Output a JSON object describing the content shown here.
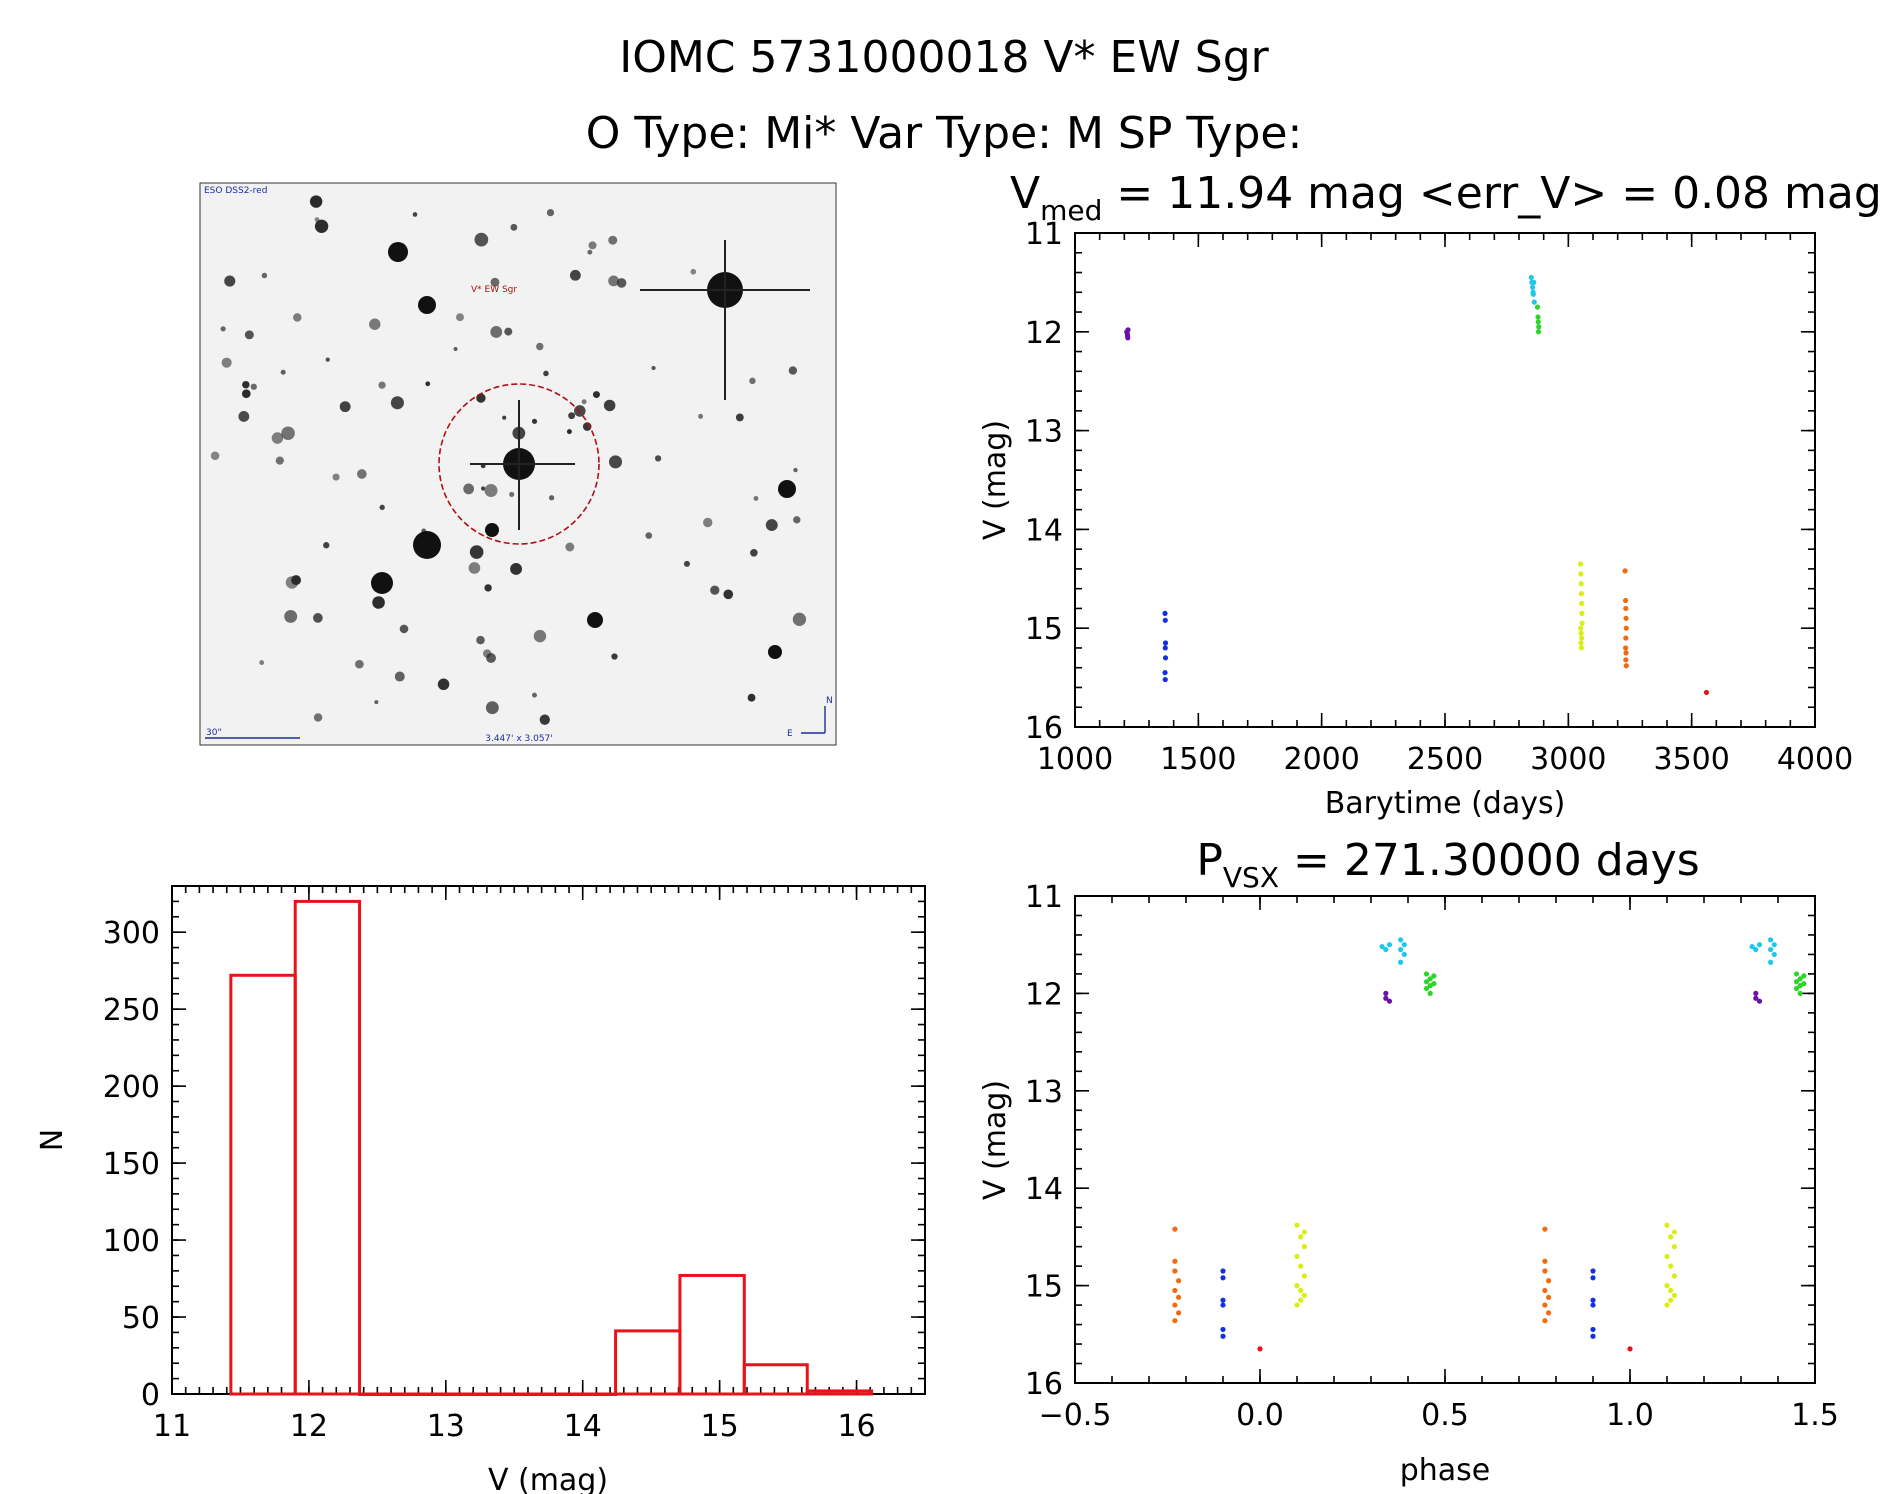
{
  "header": {
    "title_line1": "IOMC 5731000018    V* EW Sgr",
    "title_line2": "O Type: Mi*  Var Type: M  SP Type:"
  },
  "image_panel": {
    "survey_label": "ESO DSS2-red",
    "star_label": "V* EW Sgr",
    "scale_label": "30\"",
    "size_label": "3.447' x 3.057'",
    "compass_n": "N",
    "compass_e": "E"
  },
  "chart_data": [
    {
      "id": "lightcurve",
      "type": "scatter",
      "title_main": "V",
      "title_sub": "med",
      "title_rest": " = 11.94 mag <err_V> = 0.08 mag",
      "xlabel": "Barytime (days)",
      "ylabel": "V (mag)",
      "xlim": [
        1000,
        4000
      ],
      "ylim": [
        11,
        16
      ],
      "y_inverted": true,
      "xticks": [
        1000,
        1500,
        2000,
        2500,
        3000,
        3500,
        4000
      ],
      "yticks": [
        11,
        12,
        13,
        14,
        15,
        16
      ],
      "series": [
        {
          "name": "purple",
          "color": "#6a12a8",
          "x": [
            1210,
            1212,
            1213,
            1214,
            1215
          ],
          "y": [
            12.0,
            12.02,
            12.04,
            12.06,
            11.98
          ]
        },
        {
          "name": "blue",
          "color": "#1530e0",
          "x": [
            1365,
            1366,
            1367,
            1366,
            1367,
            1365,
            1366
          ],
          "y": [
            14.85,
            14.92,
            15.15,
            15.2,
            15.3,
            15.45,
            15.52
          ]
        },
        {
          "name": "cyan",
          "color": "#1ec8e8",
          "x": [
            2850,
            2852,
            2855,
            2857,
            2858,
            2860,
            2862
          ],
          "y": [
            11.45,
            11.5,
            11.55,
            11.6,
            11.62,
            11.5,
            11.7
          ]
        },
        {
          "name": "green",
          "color": "#2ad62a",
          "x": [
            2875,
            2877,
            2878,
            2880,
            2879
          ],
          "y": [
            11.75,
            11.85,
            11.9,
            11.95,
            12.0
          ]
        },
        {
          "name": "yellow",
          "color": "#d9ee12",
          "x": [
            3050,
            3051,
            3052,
            3053,
            3054,
            3055,
            3056,
            3050,
            3052,
            3054,
            3051,
            3053
          ],
          "y": [
            14.35,
            14.45,
            14.55,
            14.65,
            14.75,
            14.85,
            14.95,
            15.0,
            15.05,
            15.1,
            15.15,
            15.2
          ]
        },
        {
          "name": "orange",
          "color": "#f26a10",
          "x": [
            3230,
            3232,
            3233,
            3234,
            3235,
            3233,
            3232,
            3234,
            3233,
            3235
          ],
          "y": [
            14.42,
            14.72,
            14.8,
            14.9,
            15.0,
            15.1,
            15.2,
            15.25,
            15.32,
            15.38
          ]
        },
        {
          "name": "red",
          "color": "#e8131a",
          "x": [
            3560
          ],
          "y": [
            15.65
          ]
        }
      ]
    },
    {
      "id": "phased",
      "type": "scatter",
      "title_main": "P",
      "title_sub": "VSX",
      "title_rest": " = 271.30000 days",
      "xlabel": "phase",
      "ylabel": "V (mag)",
      "xlim": [
        -0.5,
        1.5
      ],
      "ylim": [
        11,
        16
      ],
      "y_inverted": true,
      "xticks": [
        -0.5,
        0.0,
        0.5,
        1.0,
        1.5
      ],
      "xtick_labels": [
        "−0.5",
        "0.0",
        "0.5",
        "1.0",
        "1.5"
      ],
      "yticks": [
        11,
        12,
        13,
        14,
        15,
        16
      ],
      "series": [
        {
          "name": "orange",
          "color": "#f26a10",
          "x": [
            -0.23,
            -0.23,
            -0.23,
            -0.22,
            -0.23,
            -0.22,
            -0.23,
            -0.22,
            -0.23,
            0.77,
            0.77,
            0.77,
            0.78,
            0.77,
            0.78,
            0.77,
            0.78,
            0.77
          ],
          "y": [
            14.42,
            14.75,
            14.85,
            14.95,
            15.05,
            15.12,
            15.2,
            15.28,
            15.36,
            14.42,
            14.75,
            14.85,
            14.95,
            15.05,
            15.12,
            15.2,
            15.28,
            15.36
          ]
        },
        {
          "name": "blue",
          "color": "#1530e0",
          "x": [
            -0.1,
            -0.1,
            -0.1,
            -0.1,
            -0.1,
            -0.1,
            0.9,
            0.9,
            0.9,
            0.9,
            0.9,
            0.9
          ],
          "y": [
            14.85,
            14.92,
            15.15,
            15.2,
            15.45,
            15.52,
            14.85,
            14.92,
            15.15,
            15.2,
            15.45,
            15.52
          ]
        },
        {
          "name": "red",
          "color": "#e8131a",
          "x": [
            0.0,
            1.0
          ],
          "y": [
            15.65,
            15.65
          ]
        },
        {
          "name": "yellow",
          "color": "#d9ee12",
          "x": [
            0.1,
            0.11,
            0.12,
            0.1,
            0.11,
            0.12,
            0.1,
            0.11,
            0.12,
            0.11,
            0.1,
            0.12,
            1.1,
            1.11,
            1.12,
            1.1,
            1.11,
            1.12,
            1.1,
            1.11,
            1.12,
            1.11,
            1.1,
            1.12
          ],
          "y": [
            14.38,
            14.5,
            14.6,
            14.7,
            14.8,
            14.9,
            15.0,
            15.05,
            15.1,
            15.15,
            15.2,
            14.45,
            14.38,
            14.5,
            14.6,
            14.7,
            14.8,
            14.9,
            15.0,
            15.05,
            15.1,
            15.15,
            15.2,
            14.45
          ]
        },
        {
          "name": "purple",
          "color": "#6a12a8",
          "x": [
            0.34,
            0.34,
            0.35,
            1.34,
            1.34,
            1.35
          ],
          "y": [
            12.0,
            12.05,
            12.08,
            12.0,
            12.05,
            12.08
          ]
        },
        {
          "name": "cyan",
          "color": "#1ec8e8",
          "x": [
            0.33,
            0.34,
            0.35,
            0.38,
            0.39,
            0.38,
            0.39,
            0.38,
            1.33,
            1.34,
            1.35,
            1.38,
            1.39,
            1.38,
            1.39,
            1.38
          ],
          "y": [
            11.52,
            11.55,
            11.5,
            11.45,
            11.5,
            11.55,
            11.6,
            11.68,
            11.52,
            11.55,
            11.5,
            11.45,
            11.5,
            11.55,
            11.6,
            11.68
          ]
        },
        {
          "name": "green",
          "color": "#2ad62a",
          "x": [
            0.45,
            0.46,
            0.47,
            0.45,
            0.46,
            0.47,
            0.46,
            0.45,
            1.45,
            1.46,
            1.47,
            1.45,
            1.46,
            1.47,
            1.46,
            1.45
          ],
          "y": [
            11.8,
            11.85,
            11.9,
            11.95,
            12.0,
            11.82,
            11.92,
            11.88,
            11.8,
            11.85,
            11.9,
            11.95,
            12.0,
            11.82,
            11.92,
            11.88
          ]
        }
      ]
    },
    {
      "id": "histogram",
      "type": "bar",
      "xlabel": "V (mag)",
      "ylabel": "N",
      "xlim": [
        11,
        16.5
      ],
      "ylim": [
        0,
        330
      ],
      "xticks": [
        11,
        12,
        13,
        14,
        15,
        16
      ],
      "yticks": [
        0,
        50,
        100,
        150,
        200,
        250,
        300
      ],
      "bin_edges": [
        11.43,
        11.9,
        12.37,
        12.84,
        13.3,
        13.77,
        14.24,
        14.71,
        15.18,
        15.64,
        16.11
      ],
      "values": [
        272,
        320,
        0,
        0,
        0,
        0,
        41,
        77,
        19,
        2
      ],
      "color": "#e8131a"
    }
  ]
}
